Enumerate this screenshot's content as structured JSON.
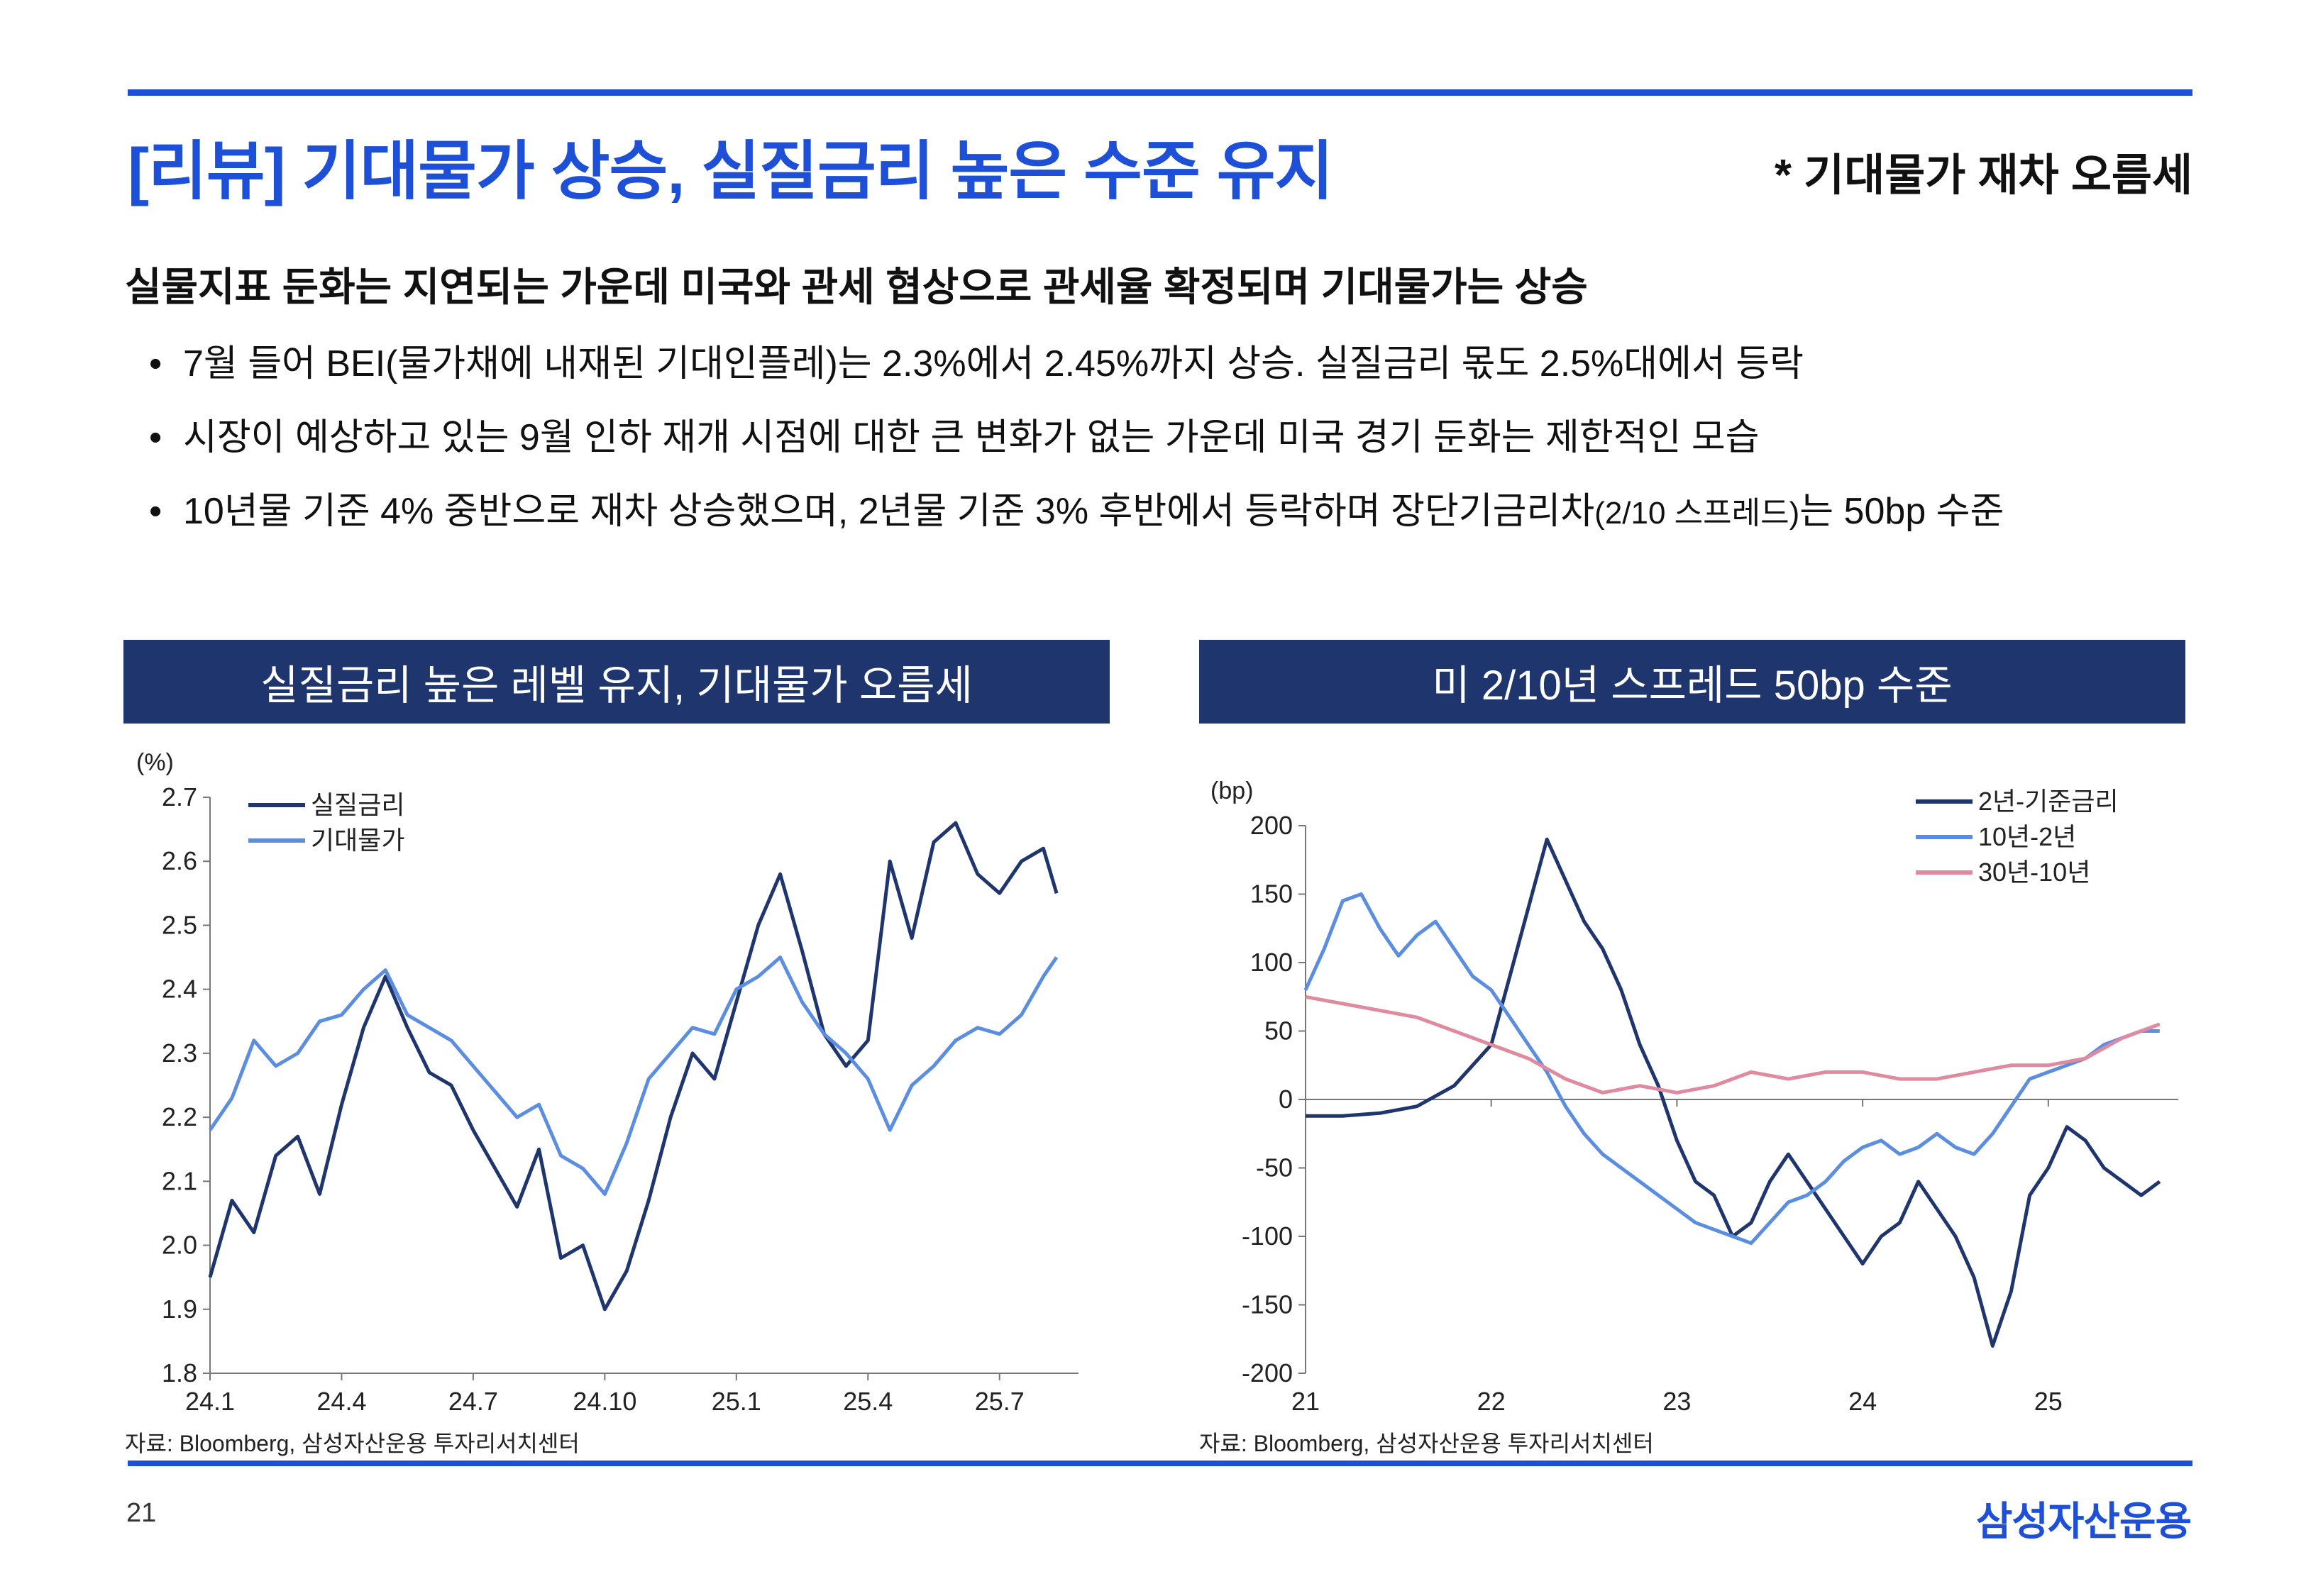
{
  "header": {
    "title": "[리뷰] 기대물가 상승, 실질금리 높은 수준 유지",
    "tag_note": "* 기대물가 재차 오름세"
  },
  "summary": {
    "headline": "실물지표 둔화는 지연되는 가운데 미국와 관세 협상으로 관세율 확정되며 기대물가는 상승",
    "bullets": [
      {
        "text": "7월 들어 BEI(물가채에 내재된 기대인플레)는 2.3%에서 2.45%까지 상승. 실질금리 몫도 2.5%대에서 등락"
      },
      {
        "text": "시장이 예상하고 있는 9월 인하 재개 시점에 대한 큰 변화가 없는 가운데 미국 경기 둔화는 제한적인 모습"
      },
      {
        "text_pre": "10년물 기준 4% 중반으로 재차 상승했으며, 2년물 기준 3% 후반에서 등락하며 장단기금리차",
        "text_small": "(2/10 스프레드)",
        "text_post": "는 50bp 수준"
      }
    ]
  },
  "bullet_symbol": "•",
  "colors": {
    "accent": "#1d50d6",
    "panel_header": "#1f356e",
    "navy_series": "#1f356e",
    "light_blue_series": "#5b8ee0",
    "pink_series": "#e08aa0"
  },
  "left_panel": {
    "header": "실질금리 높은 레벨 유지, 기대물가 오름세",
    "source": "자료: Bloomberg, 삼성자산운용 투자리서치센터"
  },
  "right_panel": {
    "header": "미 2/10년 스프레드 50bp 수준",
    "source": "자료: Bloomberg, 삼성자산운용 투자리서치센터"
  },
  "chart_data": [
    {
      "type": "line",
      "title": "실질금리 높은 레벨 유지, 기대물가 오름세",
      "ylabel": "(%)",
      "ylim": [
        1.8,
        2.7
      ],
      "yticks": [
        "1.8",
        "1.9",
        "2.0",
        "2.1",
        "2.2",
        "2.3",
        "2.4",
        "2.5",
        "2.6",
        "2.7"
      ],
      "xlim": [
        0,
        19.8
      ],
      "xticks": [
        {
          "label": "24.1",
          "x": 0
        },
        {
          "label": "24.4",
          "x": 3
        },
        {
          "label": "24.7",
          "x": 6
        },
        {
          "label": "24.10",
          "x": 9
        },
        {
          "label": "25.1",
          "x": 12
        },
        {
          "label": "25.4",
          "x": 15
        },
        {
          "label": "25.7",
          "x": 18
        }
      ],
      "legend_position": "top-left",
      "series": [
        {
          "name": "실질금리",
          "color": "#1f356e",
          "x": [
            0,
            0.5,
            1,
            1.5,
            2,
            2.5,
            3,
            3.5,
            4,
            4.5,
            5,
            5.5,
            6,
            6.5,
            7,
            7.5,
            8,
            8.5,
            9,
            9.5,
            10,
            10.5,
            11,
            11.5,
            12,
            12.5,
            13,
            13.5,
            14,
            14.5,
            15,
            15.5,
            16,
            16.5,
            17,
            17.5,
            18,
            18.5,
            19,
            19.3
          ],
          "values": [
            1.95,
            2.07,
            2.02,
            2.14,
            2.17,
            2.08,
            2.22,
            2.34,
            2.42,
            2.34,
            2.27,
            2.25,
            2.18,
            2.12,
            2.06,
            2.15,
            1.98,
            2.0,
            1.9,
            1.96,
            2.07,
            2.2,
            2.3,
            2.26,
            2.38,
            2.5,
            2.58,
            2.46,
            2.33,
            2.28,
            2.32,
            2.6,
            2.48,
            2.63,
            2.66,
            2.58,
            2.55,
            2.6,
            2.62,
            2.55
          ]
        },
        {
          "name": "기대물가",
          "color": "#5b8ee0",
          "x": [
            0,
            0.5,
            1,
            1.5,
            2,
            2.5,
            3,
            3.5,
            4,
            4.5,
            5,
            5.5,
            6,
            6.5,
            7,
            7.5,
            8,
            8.5,
            9,
            9.5,
            10,
            10.5,
            11,
            11.5,
            12,
            12.5,
            13,
            13.5,
            14,
            14.5,
            15,
            15.5,
            16,
            16.5,
            17,
            17.5,
            18,
            18.5,
            19,
            19.3
          ],
          "values": [
            2.18,
            2.23,
            2.32,
            2.28,
            2.3,
            2.35,
            2.36,
            2.4,
            2.43,
            2.36,
            2.34,
            2.32,
            2.28,
            2.24,
            2.2,
            2.22,
            2.14,
            2.12,
            2.08,
            2.16,
            2.26,
            2.3,
            2.34,
            2.33,
            2.4,
            2.42,
            2.45,
            2.38,
            2.33,
            2.3,
            2.26,
            2.18,
            2.25,
            2.28,
            2.32,
            2.34,
            2.33,
            2.36,
            2.42,
            2.45
          ]
        }
      ]
    },
    {
      "type": "line",
      "title": "미 2/10년 스프레드 50bp 수준",
      "ylabel": "(bp)",
      "ylim": [
        -200,
        200
      ],
      "yticks": [
        "-200",
        "-150",
        "-100",
        "-50",
        "0",
        "50",
        "100",
        "150",
        "200"
      ],
      "xlim": [
        21,
        25.7
      ],
      "xticks": [
        {
          "label": "21",
          "x": 21
        },
        {
          "label": "22",
          "x": 22
        },
        {
          "label": "23",
          "x": 23
        },
        {
          "label": "24",
          "x": 24
        },
        {
          "label": "25",
          "x": 25
        }
      ],
      "legend_position": "top-right",
      "series": [
        {
          "name": "2년-기준금리",
          "color": "#1f356e",
          "x": [
            21,
            21.2,
            21.4,
            21.6,
            21.8,
            22,
            22.1,
            22.2,
            22.3,
            22.4,
            22.5,
            22.6,
            22.7,
            22.8,
            22.9,
            23,
            23.1,
            23.2,
            23.3,
            23.4,
            23.5,
            23.6,
            23.7,
            23.8,
            23.9,
            24,
            24.1,
            24.2,
            24.3,
            24.4,
            24.5,
            24.6,
            24.7,
            24.8,
            24.9,
            25,
            25.1,
            25.2,
            25.3,
            25.4,
            25.5,
            25.6
          ],
          "values": [
            -12,
            -12,
            -10,
            -5,
            10,
            40,
            90,
            140,
            190,
            160,
            130,
            110,
            80,
            40,
            10,
            -30,
            -60,
            -70,
            -100,
            -90,
            -60,
            -40,
            -60,
            -80,
            -100,
            -120,
            -100,
            -90,
            -60,
            -80,
            -100,
            -130,
            -180,
            -140,
            -70,
            -50,
            -20,
            -30,
            -50,
            -60,
            -70,
            -60
          ]
        },
        {
          "name": "10년-2년",
          "color": "#5b8ee0",
          "x": [
            21,
            21.1,
            21.2,
            21.3,
            21.4,
            21.5,
            21.6,
            21.7,
            21.8,
            21.9,
            22,
            22.1,
            22.2,
            22.3,
            22.4,
            22.5,
            22.6,
            22.7,
            22.8,
            22.9,
            23,
            23.1,
            23.2,
            23.3,
            23.4,
            23.5,
            23.6,
            23.7,
            23.8,
            23.9,
            24,
            24.1,
            24.2,
            24.3,
            24.4,
            24.5,
            24.6,
            24.7,
            24.8,
            24.9,
            25,
            25.1,
            25.2,
            25.3,
            25.4,
            25.5,
            25.6
          ],
          "values": [
            80,
            110,
            145,
            150,
            125,
            105,
            120,
            130,
            110,
            90,
            80,
            60,
            40,
            20,
            -5,
            -25,
            -40,
            -50,
            -60,
            -70,
            -80,
            -90,
            -95,
            -100,
            -105,
            -90,
            -75,
            -70,
            -60,
            -45,
            -35,
            -30,
            -40,
            -35,
            -25,
            -35,
            -40,
            -25,
            -5,
            15,
            20,
            25,
            30,
            40,
            45,
            50,
            50
          ]
        },
        {
          "name": "30년-10년",
          "color": "#e08aa0",
          "x": [
            21,
            21.2,
            21.4,
            21.6,
            21.8,
            22,
            22.2,
            22.4,
            22.6,
            22.8,
            23,
            23.2,
            23.4,
            23.6,
            23.8,
            24,
            24.2,
            24.4,
            24.6,
            24.8,
            25,
            25.2,
            25.4,
            25.6
          ],
          "values": [
            75,
            70,
            65,
            60,
            50,
            40,
            30,
            15,
            5,
            10,
            5,
            10,
            20,
            15,
            20,
            20,
            15,
            15,
            20,
            25,
            25,
            30,
            45,
            55
          ]
        }
      ]
    }
  ]
}
